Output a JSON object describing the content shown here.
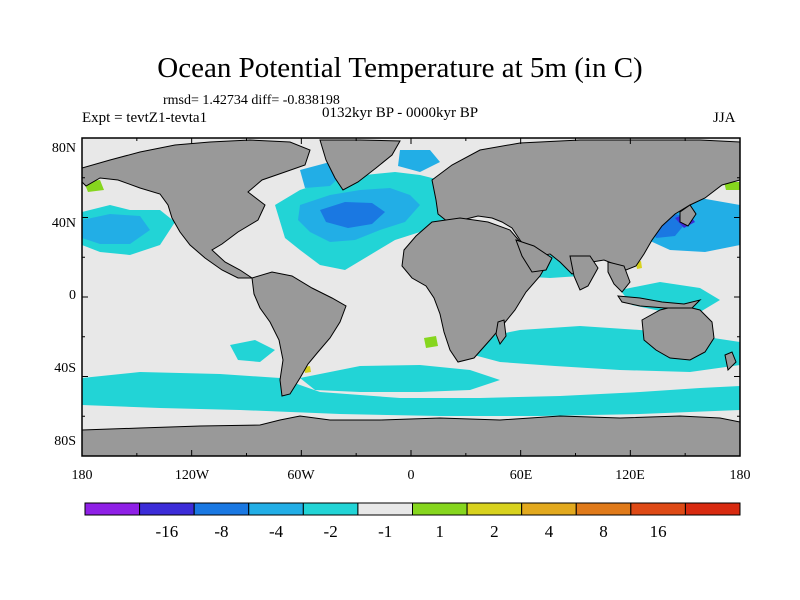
{
  "title": "Ocean Potential Temperature at 5m (in C)",
  "stats": "rmsd= 1.42734 diff= -0.838198",
  "experiment": "Expt = tevtZ1-tevta1",
  "period": "0132kyr BP - 0000kyr BP",
  "season": "JJA",
  "lat_labels": [
    "80N",
    "40N",
    "0",
    "40S",
    "80S"
  ],
  "lon_labels": [
    "180",
    "120W",
    "60W",
    "0",
    "60E",
    "120E",
    "180"
  ],
  "colorbar": {
    "colors": [
      "#8f20e6",
      "#3c2cd8",
      "#1a78e2",
      "#22aee6",
      "#22d4d6",
      "#e8e8e8",
      "#86d61e",
      "#d8d21e",
      "#e2a91e",
      "#e07a1a",
      "#de4a16",
      "#d82a10"
    ],
    "labels": [
      "-16",
      "-8",
      "-4",
      "-2",
      "-1",
      "1",
      "2",
      "4",
      "8",
      "16"
    ]
  },
  "colors": {
    "land": "#999999",
    "ocean_neutral": "#e8e8e8"
  }
}
